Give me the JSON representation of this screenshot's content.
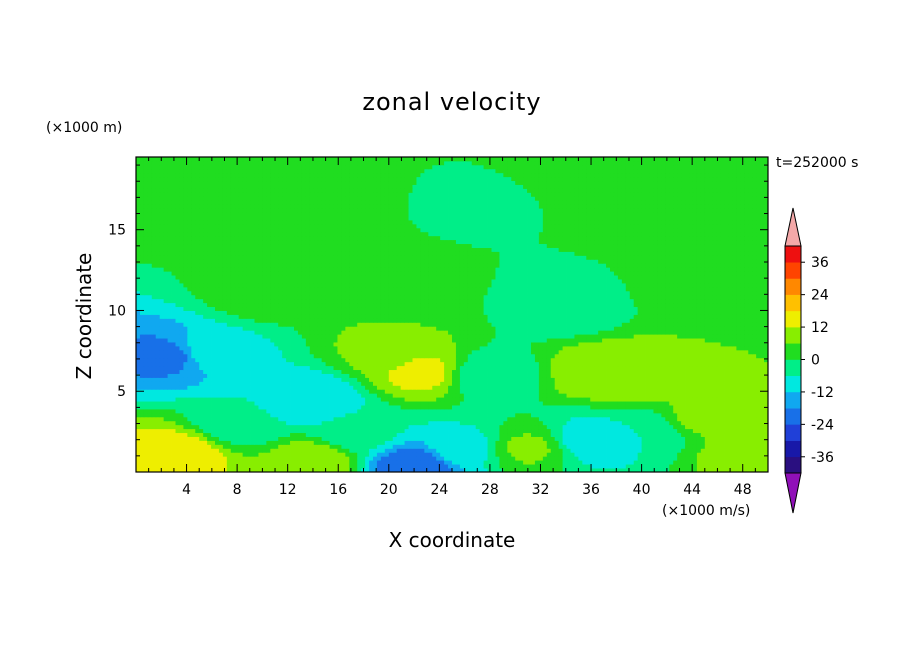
{
  "chart_data": {
    "type": "heatmap",
    "title": "zonal velocity",
    "xlabel": "X coordinate",
    "ylabel": "Z coordinate",
    "x_unit": "(×1000 m/s)",
    "y_unit": "(×1000 m)",
    "time_label": "t=252000 s",
    "xlim": [
      0,
      50
    ],
    "ylim": [
      0,
      19.5
    ],
    "x_ticks": [
      4,
      8,
      12,
      16,
      20,
      24,
      28,
      32,
      36,
      40,
      44,
      48
    ],
    "y_ticks": [
      5,
      10,
      15
    ],
    "colorbar": {
      "levels": [
        -42,
        -36,
        -30,
        -24,
        -18,
        -12,
        -6,
        0,
        6,
        12,
        18,
        24,
        30,
        36,
        42
      ],
      "tick_labels": [
        "36",
        "24",
        "12",
        "0",
        "-12",
        "-24",
        "-36"
      ],
      "tick_values": [
        36,
        24,
        12,
        0,
        -12,
        -24,
        -36
      ],
      "colors": [
        "#2a0f80",
        "#1818a8",
        "#2040d8",
        "#1870e8",
        "#10a8f0",
        "#00e8e0",
        "#00ee88",
        "#20dd20",
        "#88ee00",
        "#eeee00",
        "#ffc000",
        "#ff8800",
        "#ff4400",
        "#ee1010"
      ],
      "over_color": "#f4a8a8",
      "under_color": "#9010b8"
    },
    "features": [
      {
        "x": 2.5,
        "z": 7.2,
        "value": -20
      },
      {
        "x": 6,
        "z": 7.5,
        "value": -8
      },
      {
        "x": 14,
        "z": 4.5,
        "value": -12
      },
      {
        "x": 22.5,
        "z": 6.2,
        "value": 14
      },
      {
        "x": 20,
        "z": 7.5,
        "value": 8
      },
      {
        "x": 37,
        "z": 6.2,
        "value": 12
      },
      {
        "x": 40,
        "z": 5.8,
        "value": 9
      },
      {
        "x": 45,
        "z": 3.5,
        "value": 8
      },
      {
        "x": 3.5,
        "z": 1.2,
        "value": 16
      },
      {
        "x": 1,
        "z": 0.3,
        "value": 14
      },
      {
        "x": 14,
        "z": 0.6,
        "value": 12
      },
      {
        "x": 22,
        "z": 0.3,
        "value": -24
      },
      {
        "x": 26,
        "z": 1.5,
        "value": -8
      },
      {
        "x": 31,
        "z": 1.5,
        "value": 7
      },
      {
        "x": 36,
        "z": 2,
        "value": -10
      },
      {
        "x": 48,
        "z": 1,
        "value": 8
      },
      {
        "x": 28,
        "z": 6,
        "value": -5
      },
      {
        "x": 34,
        "z": 10.2,
        "value": -5
      },
      {
        "x": 22,
        "z": 11.5,
        "value": 2
      },
      {
        "x": 10,
        "z": 11,
        "value": 3
      },
      {
        "x": 44,
        "z": 11.5,
        "value": 3
      },
      {
        "x": 42,
        "z": 15.5,
        "value": 3
      },
      {
        "x": 5,
        "z": 16,
        "value": 2
      },
      {
        "x": 14,
        "z": 17,
        "value": 3
      },
      {
        "x": 36,
        "z": 18.8,
        "value": 3
      },
      {
        "x": 47,
        "z": 18,
        "value": 2
      },
      {
        "x": 27,
        "z": 16.5,
        "value": -1
      },
      {
        "x": 8,
        "z": 3,
        "value": -5
      },
      {
        "x": 40,
        "z": 2.5,
        "value": -6
      },
      {
        "x": 17.5,
        "z": 2.5,
        "value": -4
      }
    ]
  }
}
